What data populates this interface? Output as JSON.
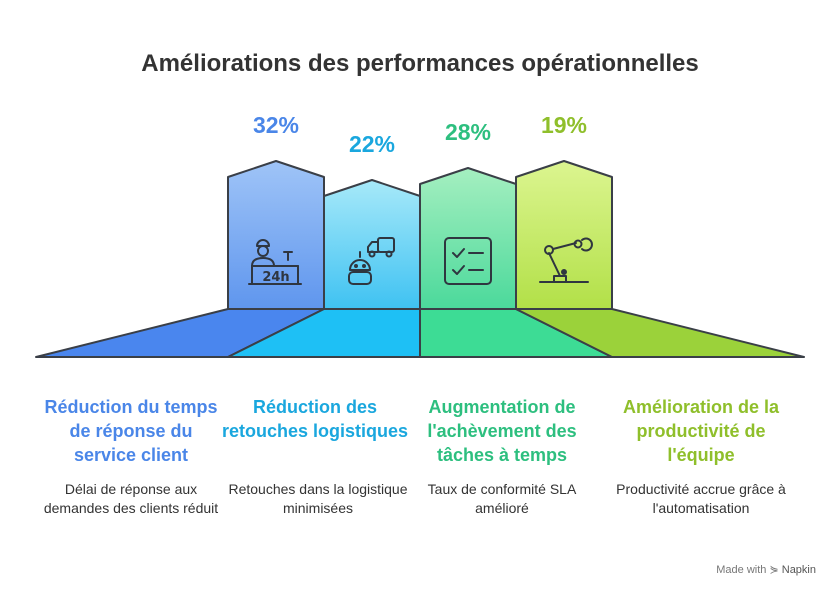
{
  "title": "Améliorations des performances opérationnelles",
  "columns": [
    {
      "percent": "32%",
      "heading": "Réduction du temps de réponse du service client",
      "description": "Délai de réponse aux demandes des clients réduit",
      "icon": "customer-service-24h-icon",
      "color": "#4a86e8"
    },
    {
      "percent": "22%",
      "heading": "Réduction des retouches logistiques",
      "description": "Retouches dans la logistique minimisées",
      "icon": "delivery-robot-icon",
      "color": "#1aa7de"
    },
    {
      "percent": "28%",
      "heading": "Augmentation de l'achèvement des tâches à temps",
      "description": "Taux de conformité SLA amélioré",
      "icon": "checklist-icon",
      "color": "#2dbf7f"
    },
    {
      "percent": "19%",
      "heading": "Amélioration de la productivité de l'équipe",
      "description": "Productivité accrue grâce à l'automatisation",
      "icon": "robotic-arm-icon",
      "color": "#8fbf2b"
    }
  ],
  "footer": {
    "made_with": "Made with",
    "brand": "Napkin"
  }
}
